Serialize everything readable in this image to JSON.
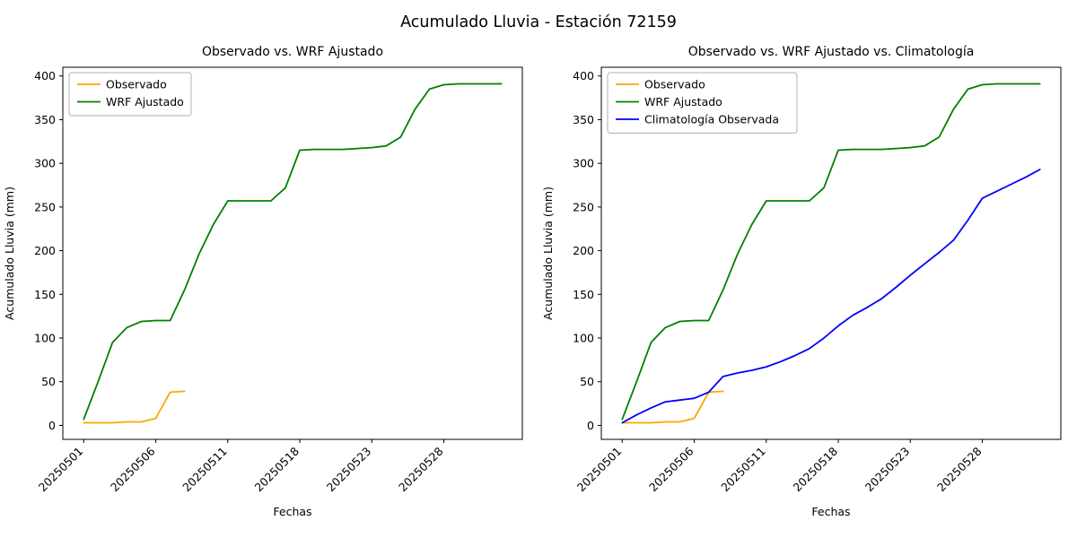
{
  "figure_title": "Acumulado Lluvia - Estación 72159",
  "chart_data": [
    {
      "type": "line",
      "title": "Observado vs. WRF Ajustado",
      "xlabel": "Fechas",
      "ylabel": "Acumulado Lluvia (mm)",
      "ylim": [
        -16,
        410
      ],
      "xlim": [
        -1.45,
        30.45
      ],
      "y_ticks": [
        0,
        50,
        100,
        150,
        200,
        250,
        300,
        350,
        400
      ],
      "x_tick_positions": [
        0,
        5,
        10,
        15,
        20,
        25
      ],
      "x_tick_labels": [
        "20250501",
        "20250506",
        "20250511",
        "20250518",
        "20250523",
        "20250528"
      ],
      "legend_position": "upper left",
      "grid": false,
      "series": [
        {
          "name": "Observado",
          "color": "#FFA500",
          "values": [
            3,
            3,
            3,
            4,
            4,
            8,
            38,
            39,
            null,
            null,
            null,
            null,
            null,
            null,
            null,
            null,
            null,
            null,
            null,
            null,
            null,
            null,
            null,
            null,
            null,
            null,
            null,
            null,
            null,
            null
          ]
        },
        {
          "name": "WRF Ajustado",
          "color": "#008000",
          "values": [
            7,
            50,
            95,
            112,
            119,
            120,
            120,
            155,
            196,
            230,
            257,
            257,
            257,
            257,
            272,
            315,
            316,
            316,
            316,
            317,
            318,
            320,
            330,
            362,
            385,
            390,
            391,
            391,
            391,
            391
          ]
        }
      ]
    },
    {
      "type": "line",
      "title": "Observado vs. WRF Ajustado vs. Climatología",
      "xlabel": "Fechas",
      "ylabel": "Acumulado Lluvia (mm)",
      "ylim": [
        -16,
        410
      ],
      "xlim": [
        -1.45,
        30.45
      ],
      "y_ticks": [
        0,
        50,
        100,
        150,
        200,
        250,
        300,
        350,
        400
      ],
      "x_tick_positions": [
        0,
        5,
        10,
        15,
        20,
        25
      ],
      "x_tick_labels": [
        "20250501",
        "20250506",
        "20250511",
        "20250518",
        "20250523",
        "20250528"
      ],
      "legend_position": "upper left",
      "grid": false,
      "series": [
        {
          "name": "Observado",
          "color": "#FFA500",
          "values": [
            3,
            3,
            3,
            4,
            4,
            8,
            38,
            39,
            null,
            null,
            null,
            null,
            null,
            null,
            null,
            null,
            null,
            null,
            null,
            null,
            null,
            null,
            null,
            null,
            null,
            null,
            null,
            null,
            null,
            null
          ]
        },
        {
          "name": "WRF Ajustado",
          "color": "#008000",
          "values": [
            7,
            50,
            95,
            112,
            119,
            120,
            120,
            155,
            196,
            230,
            257,
            257,
            257,
            257,
            272,
            315,
            316,
            316,
            316,
            317,
            318,
            320,
            330,
            362,
            385,
            390,
            391,
            391,
            391,
            391
          ]
        },
        {
          "name": "Climatología Observada",
          "color": "#0000FF",
          "values": [
            3,
            12,
            20,
            27,
            29,
            31,
            38,
            56,
            60,
            63,
            67,
            73,
            80,
            88,
            100,
            114,
            126,
            135,
            145,
            158,
            172,
            185,
            198,
            212,
            235,
            260,
            268,
            276,
            284,
            293
          ]
        }
      ]
    }
  ]
}
